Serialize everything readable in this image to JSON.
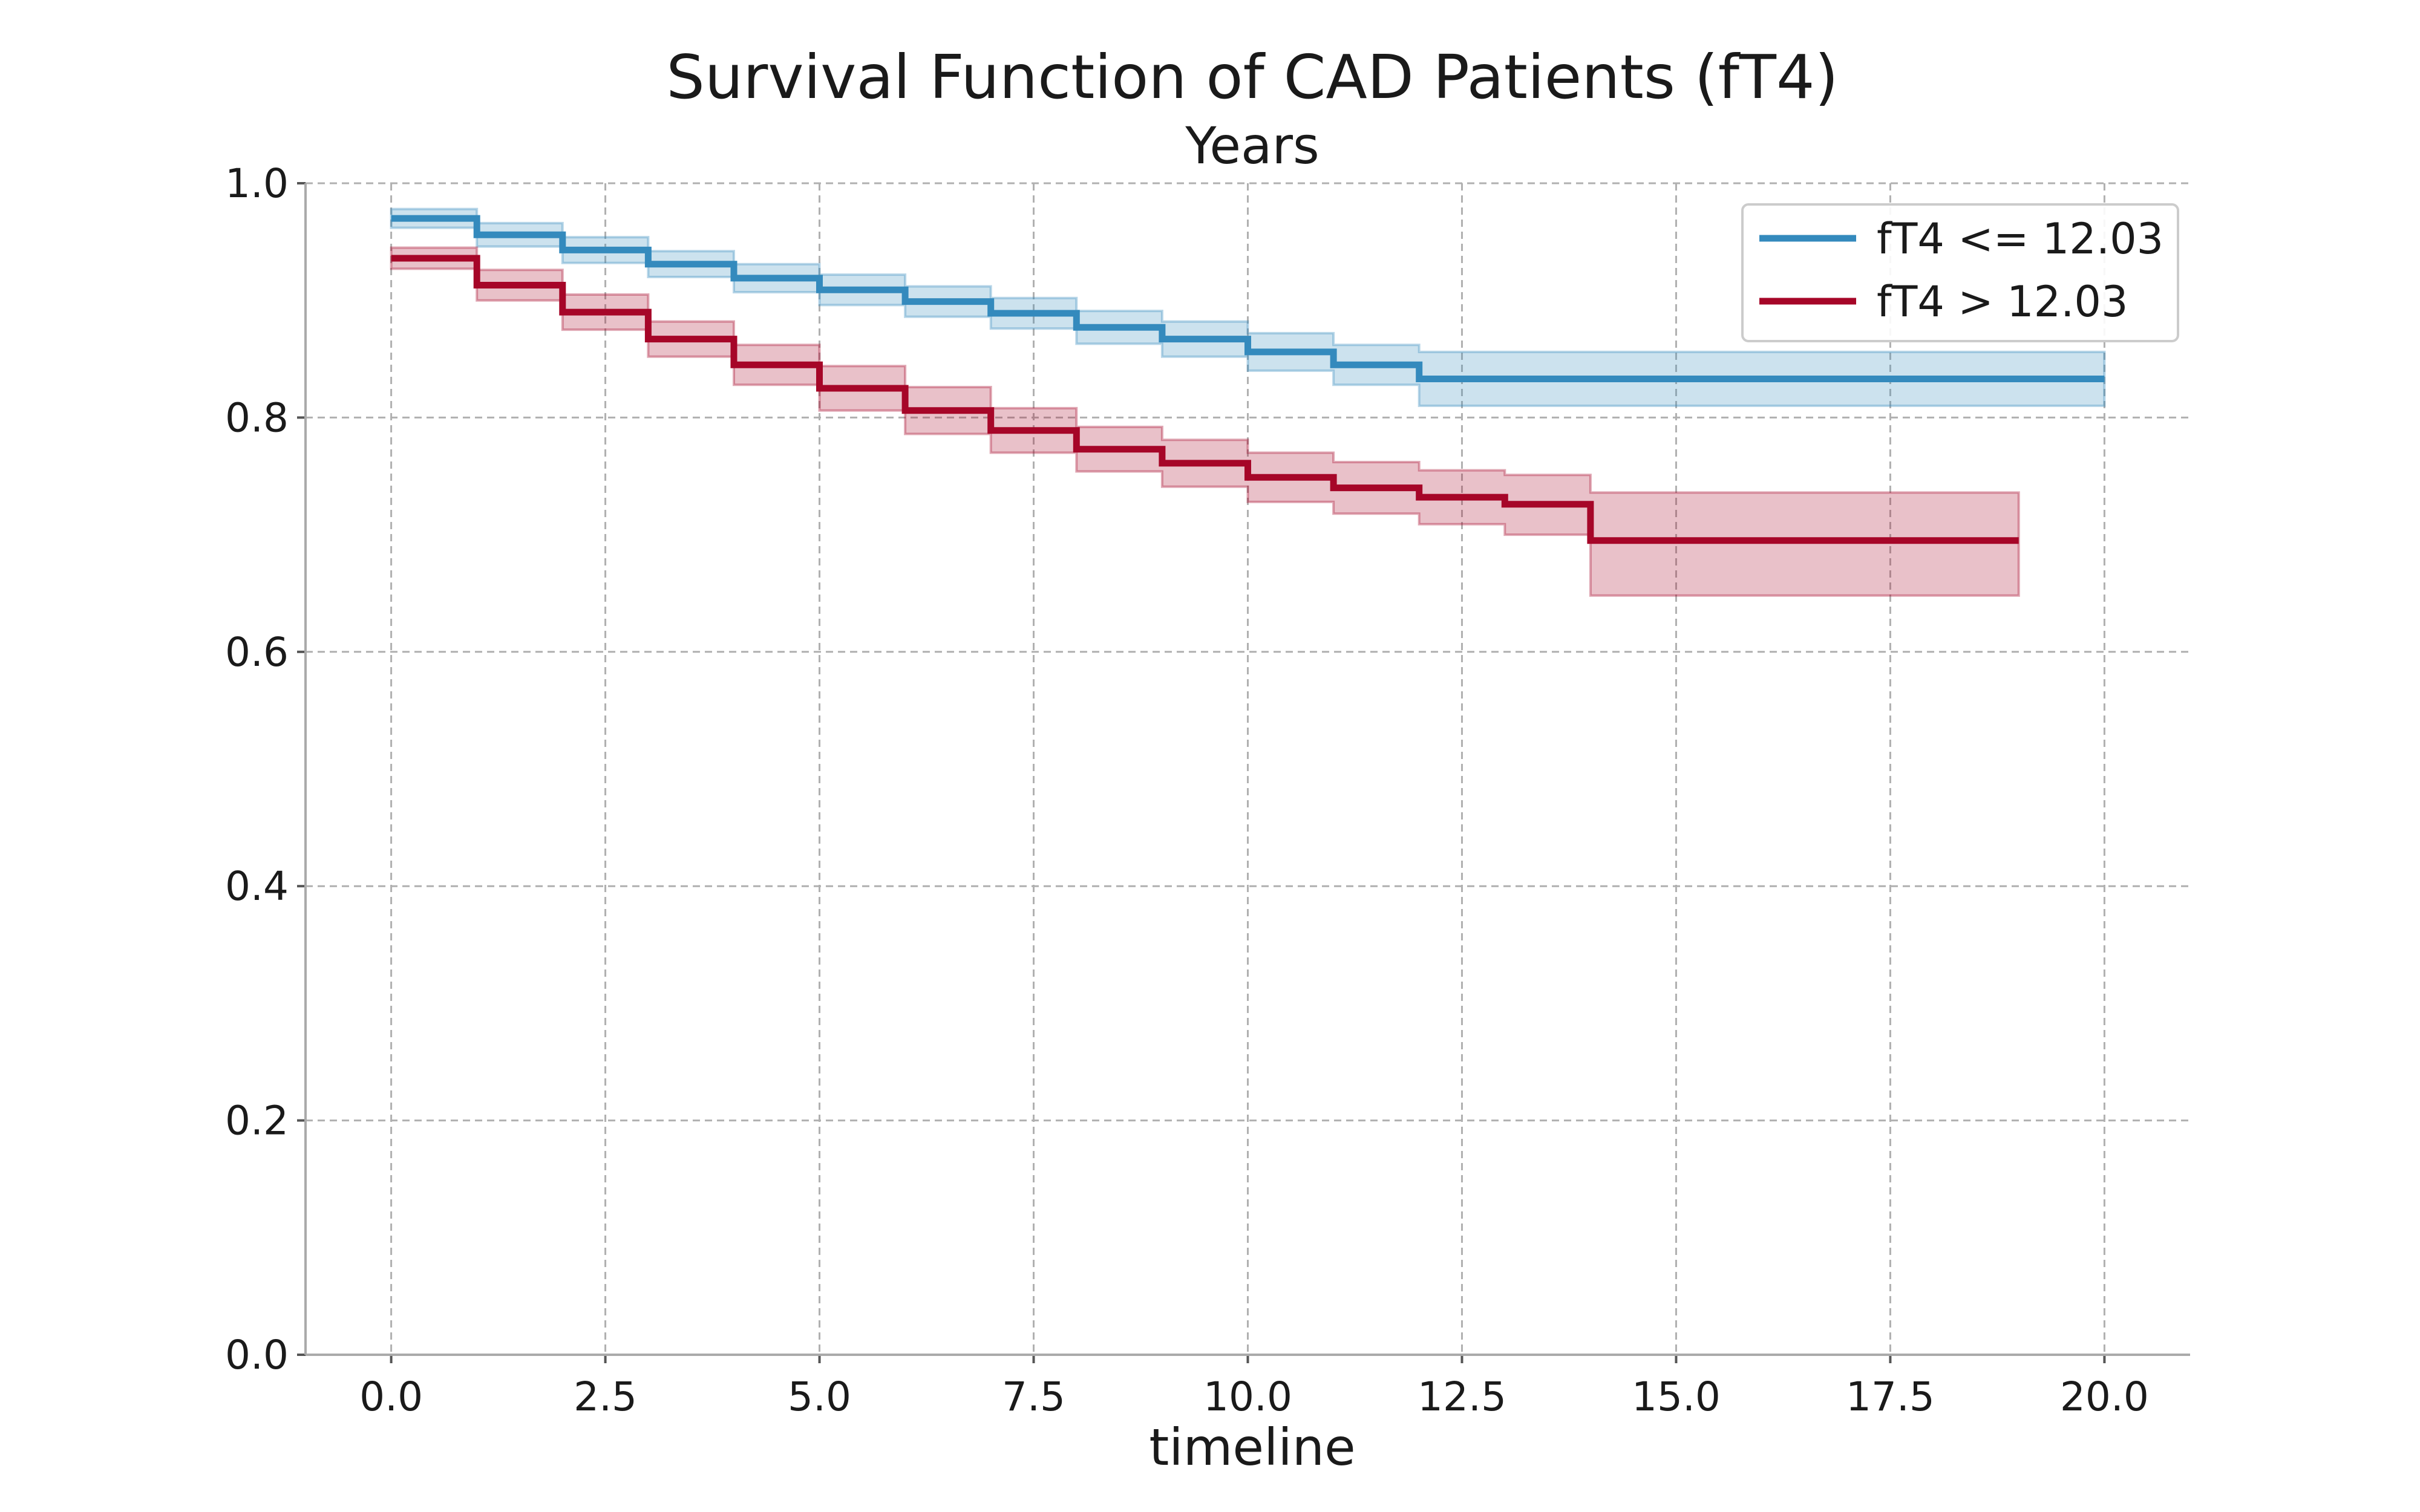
{
  "chart_data": {
    "type": "line",
    "title": "Survival Function of CAD Patients (fT4)",
    "subtitle": "Years",
    "xlabel": "timeline",
    "ylabel": "",
    "xlim": [
      -1.0,
      21.0
    ],
    "ylim": [
      0.0,
      1.0
    ],
    "xticks": [
      0.0,
      2.5,
      5.0,
      7.5,
      10.0,
      12.5,
      15.0,
      17.5,
      20.0
    ],
    "xtick_labels": [
      "0.0",
      "2.5",
      "5.0",
      "7.5",
      "10.0",
      "12.5",
      "15.0",
      "17.5",
      "20.0"
    ],
    "yticks": [
      0.0,
      0.2,
      0.4,
      0.6,
      0.8,
      1.0
    ],
    "ytick_labels": [
      "0.0",
      "0.2",
      "0.4",
      "0.6",
      "0.8",
      "1.0"
    ],
    "grid": true,
    "legend_position": "top-right",
    "step": true,
    "series": [
      {
        "name": "fT4 <= 12.03",
        "color": "#348ABD",
        "x": [
          0,
          1,
          2,
          3,
          4,
          5,
          6,
          7,
          8,
          9,
          10,
          11,
          12,
          20
        ],
        "y": [
          0.97,
          0.956,
          0.943,
          0.931,
          0.919,
          0.909,
          0.899,
          0.889,
          0.877,
          0.867,
          0.856,
          0.845,
          0.833,
          0.833
        ],
        "ci_lower": [
          0.962,
          0.946,
          0.932,
          0.92,
          0.907,
          0.896,
          0.886,
          0.876,
          0.863,
          0.852,
          0.84,
          0.828,
          0.81,
          0.81
        ],
        "ci_upper": [
          0.978,
          0.966,
          0.954,
          0.942,
          0.931,
          0.922,
          0.912,
          0.902,
          0.891,
          0.882,
          0.872,
          0.862,
          0.856,
          0.856
        ]
      },
      {
        "name": "fT4 > 12.03",
        "color": "#A60628",
        "x": [
          0,
          1,
          2,
          3,
          4,
          5,
          6,
          7,
          8,
          9,
          10,
          11,
          12,
          13,
          14,
          19
        ],
        "y": [
          0.936,
          0.913,
          0.89,
          0.867,
          0.845,
          0.825,
          0.806,
          0.789,
          0.773,
          0.761,
          0.749,
          0.74,
          0.732,
          0.726,
          0.695,
          0.695
        ],
        "ci_lower": [
          0.927,
          0.9,
          0.875,
          0.852,
          0.828,
          0.806,
          0.786,
          0.77,
          0.754,
          0.741,
          0.728,
          0.718,
          0.709,
          0.7,
          0.648,
          0.648
        ],
        "ci_upper": [
          0.945,
          0.926,
          0.905,
          0.882,
          0.862,
          0.844,
          0.826,
          0.808,
          0.792,
          0.781,
          0.77,
          0.762,
          0.755,
          0.751,
          0.736,
          0.736
        ]
      }
    ]
  }
}
